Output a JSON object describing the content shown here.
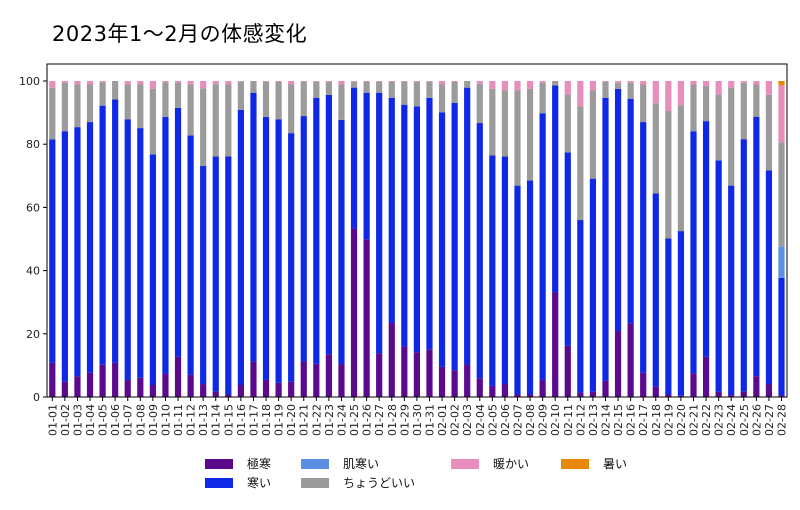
{
  "chart_data": {
    "type": "bar",
    "stacked": true,
    "title": "2023年1〜2月の体感変化",
    "xlabel": "",
    "ylabel": "",
    "ylim": [
      0,
      100
    ],
    "yticks": [
      0,
      20,
      40,
      60,
      80,
      100
    ],
    "grid": false,
    "legend_position": "bottom-center",
    "categories": [
      "01-01",
      "01-02",
      "01-03",
      "01-04",
      "01-05",
      "01-06",
      "01-07",
      "01-08",
      "01-09",
      "01-10",
      "01-11",
      "01-12",
      "01-13",
      "01-14",
      "01-15",
      "01-16",
      "01-17",
      "01-18",
      "01-19",
      "01-20",
      "01-21",
      "01-22",
      "01-23",
      "01-24",
      "01-25",
      "01-26",
      "01-27",
      "01-28",
      "01-29",
      "01-30",
      "01-31",
      "02-01",
      "02-02",
      "02-03",
      "02-04",
      "02-05",
      "02-06",
      "02-07",
      "02-08",
      "02-09",
      "02-10",
      "02-11",
      "02-12",
      "02-13",
      "02-14",
      "02-15",
      "02-16",
      "02-17",
      "02-18",
      "02-19",
      "02-20",
      "02-21",
      "02-22",
      "02-23",
      "02-24",
      "02-25",
      "02-26",
      "02-27",
      "02-28"
    ],
    "series": [
      {
        "name": "極寒",
        "color": "#5b0a8e",
        "values": [
          10.8,
          4.8,
          6.6,
          7.7,
          10.2,
          10.8,
          5.4,
          6.1,
          3.8,
          7.3,
          12.7,
          7.0,
          4.1,
          1.7,
          0.8,
          3.8,
          11.2,
          5.4,
          4.5,
          4.8,
          11.2,
          10.5,
          13.5,
          10.3,
          53.3,
          49.9,
          13.8,
          23.4,
          16.0,
          14.2,
          15.1,
          9.6,
          8.5,
          10.3,
          5.9,
          3.5,
          4.1,
          0.8,
          0.8,
          5.4,
          33.2,
          16.2,
          1.4,
          1.7,
          5.1,
          20.9,
          23.3,
          7.7,
          3.2,
          0.8,
          0.4,
          7.4,
          12.7,
          1.7,
          0.6,
          1.7,
          6.6,
          4.1,
          0.5
        ]
      },
      {
        "name": "寒い",
        "color": "#0f28e6",
        "values": [
          70.7,
          79.3,
          78.8,
          79.3,
          82.0,
          83.4,
          82.5,
          79.0,
          73.0,
          81.3,
          78.8,
          75.8,
          69.0,
          74.4,
          75.3,
          87.1,
          85.1,
          83.2,
          83.4,
          78.7,
          77.7,
          84.2,
          82.1,
          77.4,
          44.6,
          46.4,
          82.5,
          71.3,
          76.5,
          77.8,
          79.6,
          80.5,
          84.6,
          87.6,
          80.8,
          73.0,
          72.0,
          66.1,
          67.7,
          84.4,
          65.4,
          61.2,
          54.6,
          67.4,
          89.6,
          76.6,
          71.1,
          79.3,
          61.2,
          49.4,
          52.1,
          76.7,
          74.6,
          73.2,
          66.3,
          79.9,
          82.1,
          67.6,
          37.2
        ]
      },
      {
        "name": "肌寒い",
        "color": "#5b8fe6",
        "values": [
          0,
          0,
          0,
          0,
          0,
          0,
          0,
          0,
          0,
          0,
          0,
          0,
          0,
          0,
          0,
          0,
          0,
          0,
          0,
          0,
          0,
          0,
          0,
          0,
          0,
          0,
          0,
          0,
          0,
          0,
          0,
          0,
          0,
          0,
          0,
          0,
          0,
          0,
          0,
          0,
          0,
          0,
          0,
          0,
          0,
          0,
          0,
          0,
          0,
          0,
          0,
          0,
          0,
          0,
          0,
          0,
          0,
          0,
          10.0
        ]
      },
      {
        "name": "ちょうどいい",
        "color": "#9b9b9b",
        "values": [
          16.4,
          15.3,
          13.5,
          11.9,
          7.4,
          5.8,
          11.0,
          13.8,
          20.7,
          11.0,
          8.0,
          16.2,
          24.6,
          22.9,
          22.8,
          8.9,
          3.7,
          11.2,
          11.9,
          15.4,
          10.9,
          5.1,
          4.2,
          11.2,
          1.9,
          3.5,
          3.5,
          5.1,
          7.3,
          7.8,
          5.1,
          8.8,
          6.7,
          2.1,
          12.4,
          21.0,
          20.9,
          30.1,
          29.0,
          9.6,
          1.4,
          18.3,
          36.0,
          27.9,
          5.1,
          1.9,
          5.0,
          11.9,
          28.6,
          40.3,
          39.8,
          14.8,
          11.1,
          20.9,
          31.0,
          17.8,
          10.2,
          23.9,
          32.9
        ]
      },
      {
        "name": "暖かい",
        "color": "#e78ebd",
        "values": [
          2.1,
          0.6,
          1.1,
          1.1,
          0.4,
          0,
          1.1,
          1.1,
          2.5,
          0.4,
          0.5,
          1.0,
          2.3,
          1.0,
          1.1,
          0.2,
          0,
          0.2,
          0.2,
          1.1,
          0.2,
          0.2,
          0.2,
          1.1,
          0.2,
          0.2,
          0.2,
          0.2,
          0.2,
          0.2,
          0.2,
          1.1,
          0.2,
          0,
          0.9,
          2.5,
          3.0,
          3.0,
          2.5,
          0.6,
          0,
          4.3,
          8.0,
          3.0,
          0.2,
          0.6,
          0.6,
          1.1,
          7.0,
          9.5,
          7.7,
          1.1,
          1.6,
          4.2,
          2.1,
          0.6,
          1.1,
          4.4,
          18.0
        ]
      },
      {
        "name": "暑い",
        "color": "#e58a00",
        "values": [
          0,
          0,
          0,
          0,
          0,
          0,
          0,
          0,
          0,
          0,
          0,
          0,
          0,
          0,
          0,
          0,
          0,
          0,
          0,
          0,
          0,
          0,
          0,
          0,
          0,
          0,
          0,
          0,
          0,
          0,
          0,
          0,
          0,
          0,
          0,
          0,
          0,
          0,
          0,
          0,
          0,
          0,
          0,
          0,
          0,
          0,
          0,
          0,
          0,
          0,
          0,
          0,
          0,
          0,
          0,
          0,
          0,
          0,
          1.4
        ]
      }
    ],
    "legend": [
      {
        "name": "極寒",
        "color": "#5b0a8e"
      },
      {
        "name": "肌寒い",
        "color": "#5b8fe6"
      },
      {
        "name": "暖かい",
        "color": "#e78ebd"
      },
      {
        "name": "暑い",
        "color": "#e58a00"
      },
      {
        "name": "寒い",
        "color": "#0f28e6"
      },
      {
        "name": "ちょうどいい",
        "color": "#9b9b9b"
      }
    ]
  }
}
